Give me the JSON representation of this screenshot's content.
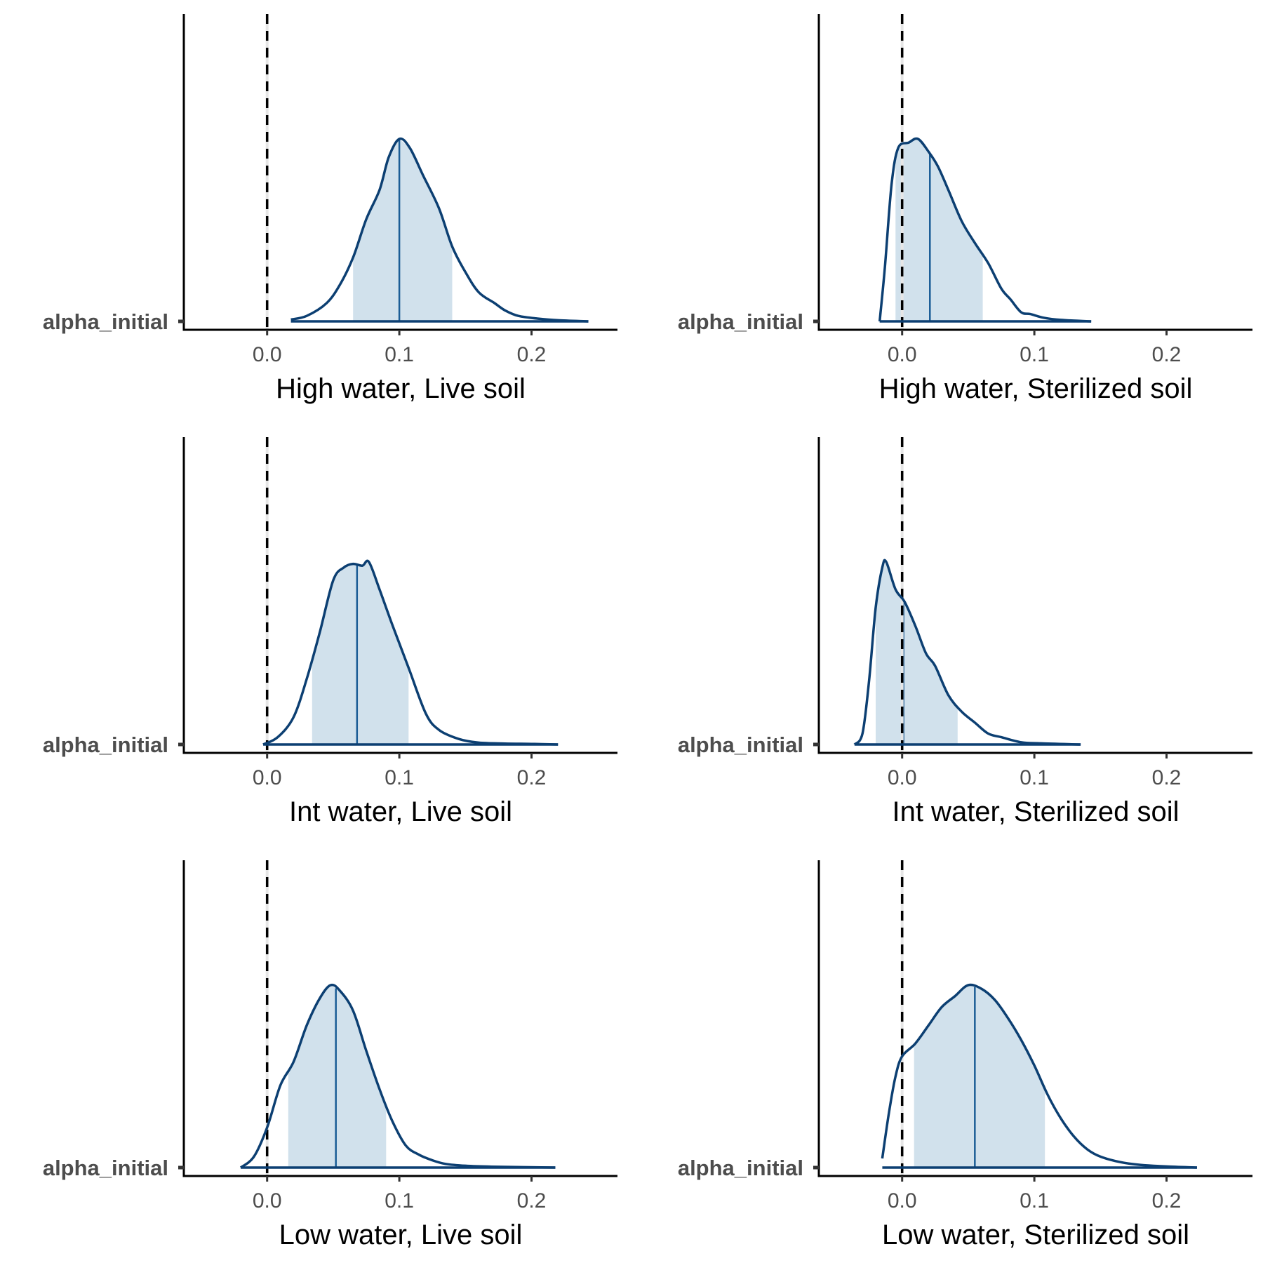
{
  "chart_data": [
    {
      "type": "area",
      "xlabel": "High water, Live soil",
      "y_tick_label": "alpha_initial",
      "x_ticks": [
        0.0,
        0.1,
        0.2
      ],
      "x_tick_labels": [
        "0.0",
        "0.1",
        "0.2"
      ],
      "xlim": [
        -0.063,
        0.265
      ],
      "reference_line_x": 0.0,
      "median": 0.1,
      "interval": [
        0.065,
        0.14
      ],
      "range": [
        0.018,
        0.243
      ],
      "density": [
        [
          0.018,
          0.01
        ],
        [
          0.03,
          0.03
        ],
        [
          0.045,
          0.1
        ],
        [
          0.055,
          0.2
        ],
        [
          0.065,
          0.35
        ],
        [
          0.075,
          0.56
        ],
        [
          0.085,
          0.72
        ],
        [
          0.092,
          0.9
        ],
        [
          0.1,
          1.0
        ],
        [
          0.108,
          0.95
        ],
        [
          0.118,
          0.8
        ],
        [
          0.13,
          0.62
        ],
        [
          0.14,
          0.41
        ],
        [
          0.15,
          0.27
        ],
        [
          0.16,
          0.16
        ],
        [
          0.172,
          0.1
        ],
        [
          0.18,
          0.06
        ],
        [
          0.19,
          0.03
        ],
        [
          0.205,
          0.015
        ],
        [
          0.22,
          0.006
        ],
        [
          0.243,
          0.0
        ]
      ],
      "colors": {
        "line": "#0c3f72",
        "fill": "#d1e1ec",
        "median": "#1b5d96"
      }
    },
    {
      "type": "area",
      "xlabel": "High water, Sterilized soil",
      "y_tick_label": "alpha_initial",
      "x_ticks": [
        0.0,
        0.1,
        0.2
      ],
      "x_tick_labels": [
        "0.0",
        "0.1",
        "0.2"
      ],
      "xlim": [
        -0.063,
        0.265
      ],
      "reference_line_x": 0.0,
      "median": 0.021,
      "interval": [
        -0.005,
        0.061
      ],
      "range": [
        -0.017,
        0.143
      ],
      "density": [
        [
          -0.017,
          0.0
        ],
        [
          -0.013,
          0.3
        ],
        [
          -0.008,
          0.75
        ],
        [
          -0.003,
          0.95
        ],
        [
          0.005,
          0.98
        ],
        [
          0.012,
          1.0
        ],
        [
          0.02,
          0.93
        ],
        [
          0.027,
          0.85
        ],
        [
          0.035,
          0.72
        ],
        [
          0.045,
          0.55
        ],
        [
          0.055,
          0.43
        ],
        [
          0.065,
          0.32
        ],
        [
          0.075,
          0.18
        ],
        [
          0.082,
          0.12
        ],
        [
          0.09,
          0.05
        ],
        [
          0.097,
          0.04
        ],
        [
          0.107,
          0.02
        ],
        [
          0.12,
          0.008
        ],
        [
          0.143,
          0.0
        ]
      ],
      "colors": {
        "line": "#0c3f72",
        "fill": "#d1e1ec",
        "median": "#1b5d96"
      }
    },
    {
      "type": "area",
      "xlabel": "Int water, Live soil",
      "y_tick_label": "alpha_initial",
      "x_ticks": [
        0.0,
        0.1,
        0.2
      ],
      "x_tick_labels": [
        "0.0",
        "0.1",
        "0.2"
      ],
      "xlim": [
        -0.063,
        0.265
      ],
      "reference_line_x": 0.0,
      "median": 0.068,
      "interval": [
        0.034,
        0.107
      ],
      "range": [
        -0.003,
        0.22
      ],
      "density": [
        [
          -0.003,
          0.0
        ],
        [
          0.008,
          0.04
        ],
        [
          0.02,
          0.15
        ],
        [
          0.03,
          0.36
        ],
        [
          0.04,
          0.62
        ],
        [
          0.05,
          0.9
        ],
        [
          0.058,
          0.97
        ],
        [
          0.065,
          0.99
        ],
        [
          0.072,
          0.98
        ],
        [
          0.077,
          1.0
        ],
        [
          0.085,
          0.85
        ],
        [
          0.095,
          0.65
        ],
        [
          0.107,
          0.42
        ],
        [
          0.12,
          0.17
        ],
        [
          0.13,
          0.08
        ],
        [
          0.145,
          0.03
        ],
        [
          0.16,
          0.01
        ],
        [
          0.18,
          0.005
        ],
        [
          0.2,
          0.003
        ],
        [
          0.22,
          0.0
        ]
      ],
      "colors": {
        "line": "#0c3f72",
        "fill": "#d1e1ec",
        "median": "#1b5d96"
      }
    },
    {
      "type": "area",
      "xlabel": "Int water, Sterilized soil",
      "y_tick_label": "alpha_initial",
      "x_ticks": [
        0.0,
        0.1,
        0.2
      ],
      "x_tick_labels": [
        "0.0",
        "0.1",
        "0.2"
      ],
      "xlim": [
        -0.063,
        0.265
      ],
      "reference_line_x": 0.0,
      "median": 0.001,
      "interval": [
        -0.02,
        0.042
      ],
      "range": [
        -0.036,
        0.135
      ],
      "density": [
        [
          -0.036,
          0.0
        ],
        [
          -0.03,
          0.06
        ],
        [
          -0.025,
          0.35
        ],
        [
          -0.02,
          0.75
        ],
        [
          -0.015,
          0.97
        ],
        [
          -0.012,
          1.0
        ],
        [
          -0.005,
          0.85
        ],
        [
          0.002,
          0.78
        ],
        [
          0.01,
          0.65
        ],
        [
          0.018,
          0.5
        ],
        [
          0.025,
          0.43
        ],
        [
          0.035,
          0.27
        ],
        [
          0.045,
          0.18
        ],
        [
          0.055,
          0.12
        ],
        [
          0.065,
          0.06
        ],
        [
          0.075,
          0.04
        ],
        [
          0.09,
          0.012
        ],
        [
          0.105,
          0.006
        ],
        [
          0.135,
          0.0
        ]
      ],
      "colors": {
        "line": "#0c3f72",
        "fill": "#d1e1ec",
        "median": "#1b5d96"
      }
    },
    {
      "type": "area",
      "xlabel": "Low water, Live soil",
      "y_tick_label": "alpha_initial",
      "x_ticks": [
        0.0,
        0.1,
        0.2
      ],
      "x_tick_labels": [
        "0.0",
        "0.1",
        "0.2"
      ],
      "xlim": [
        -0.063,
        0.265
      ],
      "reference_line_x": 0.0,
      "median": 0.052,
      "interval": [
        0.016,
        0.09
      ],
      "range": [
        -0.02,
        0.218
      ],
      "density": [
        [
          -0.02,
          0.0
        ],
        [
          -0.01,
          0.06
        ],
        [
          0.0,
          0.22
        ],
        [
          0.01,
          0.45
        ],
        [
          0.02,
          0.58
        ],
        [
          0.03,
          0.78
        ],
        [
          0.04,
          0.93
        ],
        [
          0.048,
          1.0
        ],
        [
          0.055,
          0.97
        ],
        [
          0.065,
          0.86
        ],
        [
          0.075,
          0.64
        ],
        [
          0.085,
          0.43
        ],
        [
          0.095,
          0.25
        ],
        [
          0.105,
          0.12
        ],
        [
          0.115,
          0.07
        ],
        [
          0.125,
          0.04
        ],
        [
          0.135,
          0.02
        ],
        [
          0.15,
          0.01
        ],
        [
          0.17,
          0.005
        ],
        [
          0.218,
          0.0
        ]
      ],
      "colors": {
        "line": "#0c3f72",
        "fill": "#d1e1ec",
        "median": "#1b5d96"
      }
    },
    {
      "type": "area",
      "xlabel": "Low water, Sterilized soil",
      "y_tick_label": "alpha_initial",
      "x_ticks": [
        0.0,
        0.1,
        0.2
      ],
      "x_tick_labels": [
        "0.0",
        "0.1",
        "0.2"
      ],
      "xlim": [
        -0.063,
        0.265
      ],
      "reference_line_x": 0.0,
      "median": 0.055,
      "interval": [
        0.009,
        0.108
      ],
      "range": [
        -0.015,
        0.223
      ],
      "density": [
        [
          -0.015,
          0.05
        ],
        [
          -0.01,
          0.3
        ],
        [
          -0.005,
          0.5
        ],
        [
          0.0,
          0.61
        ],
        [
          0.01,
          0.68
        ],
        [
          0.02,
          0.78
        ],
        [
          0.03,
          0.88
        ],
        [
          0.04,
          0.94
        ],
        [
          0.05,
          1.0
        ],
        [
          0.06,
          0.98
        ],
        [
          0.07,
          0.92
        ],
        [
          0.08,
          0.82
        ],
        [
          0.09,
          0.7
        ],
        [
          0.1,
          0.56
        ],
        [
          0.11,
          0.4
        ],
        [
          0.12,
          0.27
        ],
        [
          0.13,
          0.17
        ],
        [
          0.14,
          0.1
        ],
        [
          0.15,
          0.06
        ],
        [
          0.165,
          0.03
        ],
        [
          0.18,
          0.015
        ],
        [
          0.2,
          0.006
        ],
        [
          0.223,
          0.0
        ]
      ],
      "colors": {
        "line": "#0c3f72",
        "fill": "#d1e1ec",
        "median": "#1b5d96"
      }
    }
  ]
}
